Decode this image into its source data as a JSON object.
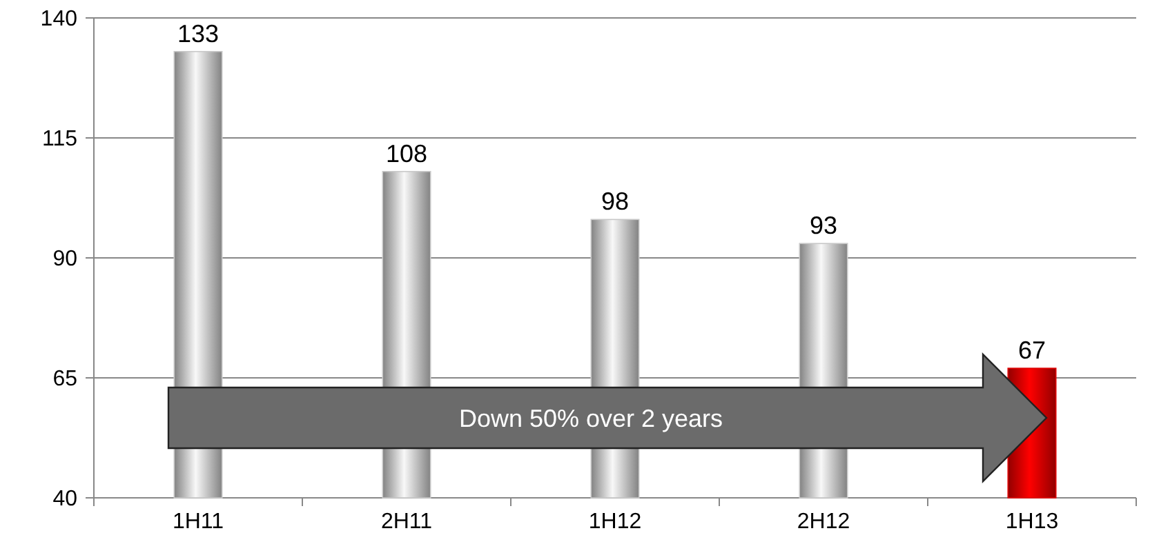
{
  "chart_data": {
    "type": "bar",
    "categories": [
      "1H11",
      "2H11",
      "1H12",
      "2H12",
      "1H13"
    ],
    "values": [
      133,
      108,
      98,
      93,
      67
    ],
    "colors": [
      "#c8c8c8",
      "#c8c8c8",
      "#c8c8c8",
      "#c8c8c8",
      "#e00000"
    ],
    "ylim": [
      40,
      140
    ],
    "yticks": [
      40,
      65,
      90,
      115,
      140
    ],
    "grid": "y",
    "data_labels": true,
    "annotations": [
      "Down 50% over 2 years"
    ]
  }
}
